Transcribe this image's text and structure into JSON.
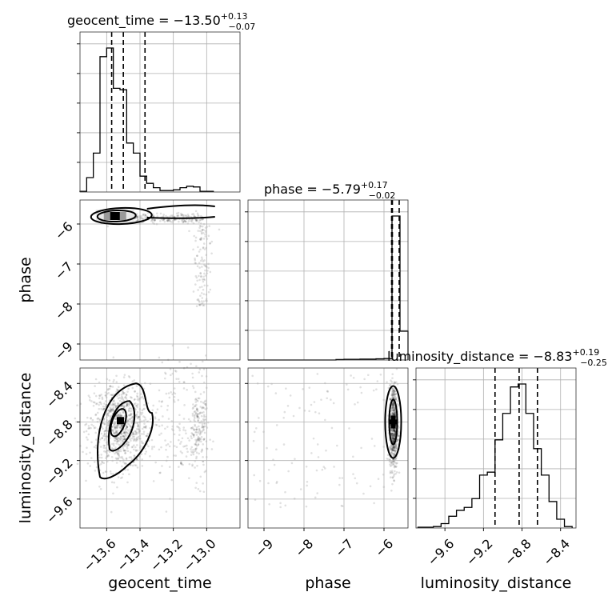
{
  "chart_data": {
    "type": "corner",
    "parameters": [
      "geocent_time",
      "phase",
      "luminosity_distance"
    ],
    "diagonal": [
      {
        "name": "geocent_time",
        "title_main": "geocent_time = −13.50",
        "title_upper": "+0.13",
        "title_lower": "−0.07",
        "range": [
          -13.76,
          -12.8
        ],
        "ticks": [
          -13.6,
          -13.4,
          -13.2,
          -13.0
        ],
        "tick_labels": [
          "−13.6",
          "−13.4",
          "−13.2",
          "−13.0"
        ],
        "quantiles": [
          -13.57,
          -13.5,
          -13.37
        ],
        "bins": [
          -13.76,
          -13.72,
          -13.68,
          -13.64,
          -13.6,
          -13.56,
          -13.52,
          -13.48,
          -13.44,
          -13.4,
          -13.36,
          -13.32,
          -13.28,
          -13.24,
          -13.2,
          -13.16,
          -13.12,
          -13.08,
          -13.04,
          -13.0,
          -12.96
        ],
        "counts": [
          0.5,
          10,
          27,
          94,
          100,
          72,
          71,
          34,
          27,
          11,
          6,
          3,
          1,
          1,
          1.5,
          3,
          4,
          3.5,
          0.5,
          0.5
        ]
      },
      {
        "name": "phase",
        "title_main": "phase = −5.79",
        "title_upper": "+0.17",
        "title_lower": "−0.02",
        "range": [
          -9.4,
          -5.4
        ],
        "ticks": [
          -9,
          -8,
          -7,
          -6
        ],
        "tick_labels": [
          "−9",
          "−8",
          "−7",
          "−6"
        ],
        "quantiles": [
          -5.81,
          -5.79,
          -5.62
        ],
        "bins": [
          -9.4,
          -9.2,
          -9.0,
          -8.8,
          -8.6,
          -8.4,
          -8.2,
          -8.0,
          -7.8,
          -7.6,
          -7.4,
          -7.2,
          -7.0,
          -6.8,
          -6.6,
          -6.4,
          -6.2,
          -6.0,
          -5.8,
          -5.6,
          -5.4
        ],
        "counts": [
          0,
          0,
          0,
          0,
          0,
          0,
          0,
          0,
          0,
          0,
          0,
          0.3,
          0.5,
          0.5,
          0.6,
          0.6,
          0.8,
          1,
          100,
          20
        ]
      },
      {
        "name": "luminosity_distance",
        "title_main": "luminosity_distance = −8.83",
        "title_upper": "+0.19",
        "title_lower": "−0.25",
        "range": [
          -9.9,
          -8.24
        ],
        "ticks": [
          -9.6,
          -9.2,
          -8.8,
          -8.4
        ],
        "tick_labels": [
          "−9.6",
          "−9.2",
          "−8.8",
          "−8.4"
        ],
        "quantiles": [
          -9.08,
          -8.83,
          -8.64
        ],
        "bins": [
          -9.88,
          -9.8,
          -9.72,
          -9.64,
          -9.56,
          -9.48,
          -9.4,
          -9.32,
          -9.24,
          -9.16,
          -9.08,
          -9.0,
          -8.92,
          -8.84,
          -8.76,
          -8.68,
          -8.6,
          -8.52,
          -8.44,
          -8.36,
          -8.28
        ],
        "counts": [
          0.5,
          0.5,
          1,
          3,
          8,
          12,
          14,
          20,
          36,
          38,
          60,
          78,
          96,
          98,
          78,
          54,
          36,
          18,
          6,
          1
        ]
      }
    ],
    "pairs": [
      {
        "x": "geocent_time",
        "y": "phase",
        "y_ticks": [
          -9,
          -8,
          -7,
          -6
        ],
        "y_tick_labels": [
          "−9",
          "−8",
          "−7",
          "−6"
        ],
        "y_range": [
          -9.4,
          -5.4
        ],
        "peak": [
          -13.55,
          -5.8
        ]
      },
      {
        "x": "geocent_time",
        "y": "luminosity_distance",
        "y_ticks": [
          -9.6,
          -9.2,
          -8.8,
          -8.4
        ],
        "y_tick_labels": [
          "−9.6",
          "−9.2",
          "−8.8",
          "−8.4"
        ],
        "y_range": [
          -9.9,
          -8.24
        ],
        "peak": [
          -13.52,
          -8.79
        ]
      },
      {
        "x": "phase",
        "y": "luminosity_distance",
        "y_range": [
          -9.9,
          -8.24
        ],
        "peak": [
          -5.77,
          -8.8
        ]
      }
    ],
    "xlabels": [
      "geocent_time",
      "phase",
      "luminosity_distance"
    ],
    "ylabels": [
      "phase",
      "luminosity_distance"
    ],
    "grid": true
  }
}
